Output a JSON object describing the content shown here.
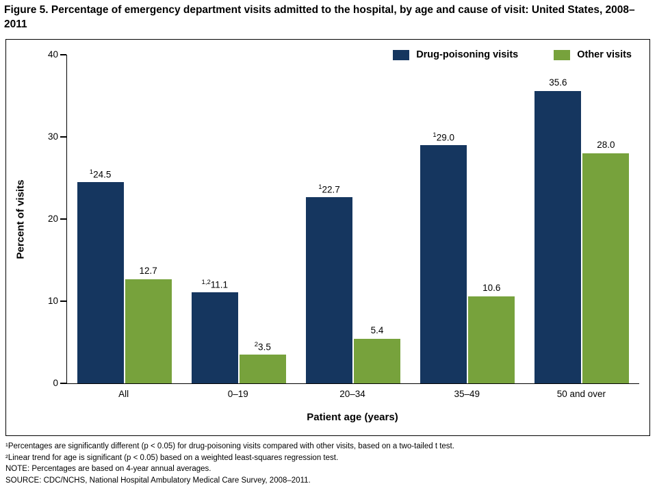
{
  "figure": {
    "title": "Figure 5. Percentage of emergency department visits admitted to the hospital, by age and cause of visit: United States, 2008–2011"
  },
  "chart_data": {
    "type": "bar",
    "title": "Percentage of emergency department visits admitted to the hospital, by age and cause of visit: United States, 2008–2011",
    "categories": [
      "All",
      "0–19",
      "20–34",
      "35–49",
      "50 and over"
    ],
    "series": [
      {
        "name": "Drug-poisoning visits",
        "color": "#15365F",
        "values": [
          24.5,
          11.1,
          22.7,
          29.0,
          35.6
        ],
        "bar_labels": [
          {
            "sup": "1",
            "value": "24.5"
          },
          {
            "sup": "1,2",
            "value": "11.1"
          },
          {
            "sup": "1",
            "value": "22.7"
          },
          {
            "sup": "1",
            "value": "29.0"
          },
          {
            "sup": "",
            "value": "35.6"
          }
        ]
      },
      {
        "name": "Other visits",
        "color": "#77A23C",
        "values": [
          12.7,
          3.5,
          5.4,
          10.6,
          28.0
        ],
        "bar_labels": [
          {
            "sup": "",
            "value": "12.7"
          },
          {
            "sup": "2",
            "value": "3.5"
          },
          {
            "sup": "",
            "value": "5.4"
          },
          {
            "sup": "",
            "value": "10.6"
          },
          {
            "sup": "",
            "value": "28.0"
          }
        ]
      }
    ],
    "xlabel": "Patient age (years)",
    "ylabel": "Percent of visits",
    "ylim": [
      0,
      40
    ],
    "yticks": [
      0,
      10,
      20,
      30,
      40
    ],
    "legend_position": "top-right",
    "grid": false
  },
  "footnotes": [
    "¹Percentages are significantly different (p < 0.05) for drug-poisoning visits compared with other visits, based on a two-tailed t test.",
    "²Linear trend for age is significant (p < 0.05) based on a weighted least-squares regression test.",
    "NOTE: Percentages are based on 4-year annual averages.",
    "SOURCE: CDC/NCHS, National Hospital Ambulatory Medical Care Survey, 2008–2011."
  ]
}
